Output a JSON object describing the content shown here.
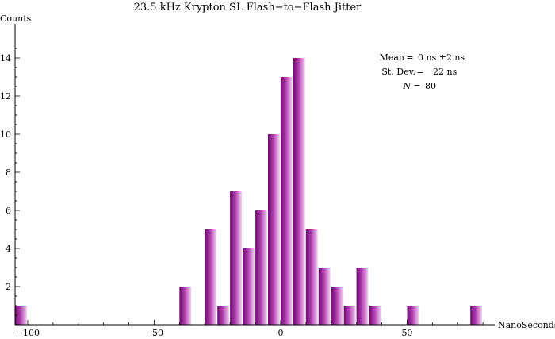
{
  "chart_data": {
    "type": "bar",
    "title": "23.5 kHz Krypton SL Flash−to−Flash Jitter",
    "xlabel": "NanoSeconds",
    "ylabel": "Counts",
    "xlim": [
      -105,
      82
    ],
    "ylim": [
      0,
      14.8
    ],
    "bin_width": 5,
    "x_ticks": [
      {
        "value": -100,
        "label": "−100"
      },
      {
        "value": -50,
        "label": "−50"
      },
      {
        "value": 0,
        "label": "0"
      },
      {
        "value": 50,
        "label": "50"
      }
    ],
    "y_ticks": [
      {
        "value": 2,
        "label": "2"
      },
      {
        "value": 4,
        "label": "4"
      },
      {
        "value": 6,
        "label": "6"
      },
      {
        "value": 8,
        "label": "8"
      },
      {
        "value": 10,
        "label": "10"
      },
      {
        "value": 12,
        "label": "12"
      },
      {
        "value": 14,
        "label": "14"
      }
    ],
    "bins": [
      {
        "x0": -105,
        "x1": -100,
        "count": 1
      },
      {
        "x0": -40,
        "x1": -35,
        "count": 2
      },
      {
        "x0": -30,
        "x1": -25,
        "count": 5
      },
      {
        "x0": -25,
        "x1": -20,
        "count": 1
      },
      {
        "x0": -20,
        "x1": -15,
        "count": 7
      },
      {
        "x0": -15,
        "x1": -10,
        "count": 4
      },
      {
        "x0": -10,
        "x1": -5,
        "count": 6
      },
      {
        "x0": -5,
        "x1": 0,
        "count": 10
      },
      {
        "x0": 0,
        "x1": 5,
        "count": 13
      },
      {
        "x0": 5,
        "x1": 10,
        "count": 14
      },
      {
        "x0": 10,
        "x1": 15,
        "count": 5
      },
      {
        "x0": 15,
        "x1": 20,
        "count": 3
      },
      {
        "x0": 20,
        "x1": 25,
        "count": 2
      },
      {
        "x0": 25,
        "x1": 30,
        "count": 1
      },
      {
        "x0": 30,
        "x1": 35,
        "count": 3
      },
      {
        "x0": 35,
        "x1": 40,
        "count": 1
      },
      {
        "x0": 50,
        "x1": 55,
        "count": 1
      },
      {
        "x0": 75,
        "x1": 80,
        "count": 1
      }
    ],
    "annotation": {
      "mean_label": "Mean",
      "mean_value": "0 ns ±2 ns",
      "stdev_label": "St. Dev.",
      "stdev_value": "22 ns",
      "n_label": "N",
      "n_value": "80"
    },
    "bar_gradient": [
      "#6a0e6a",
      "#b03cb0",
      "#f4d2f4"
    ],
    "grid": false,
    "legend": "none"
  }
}
